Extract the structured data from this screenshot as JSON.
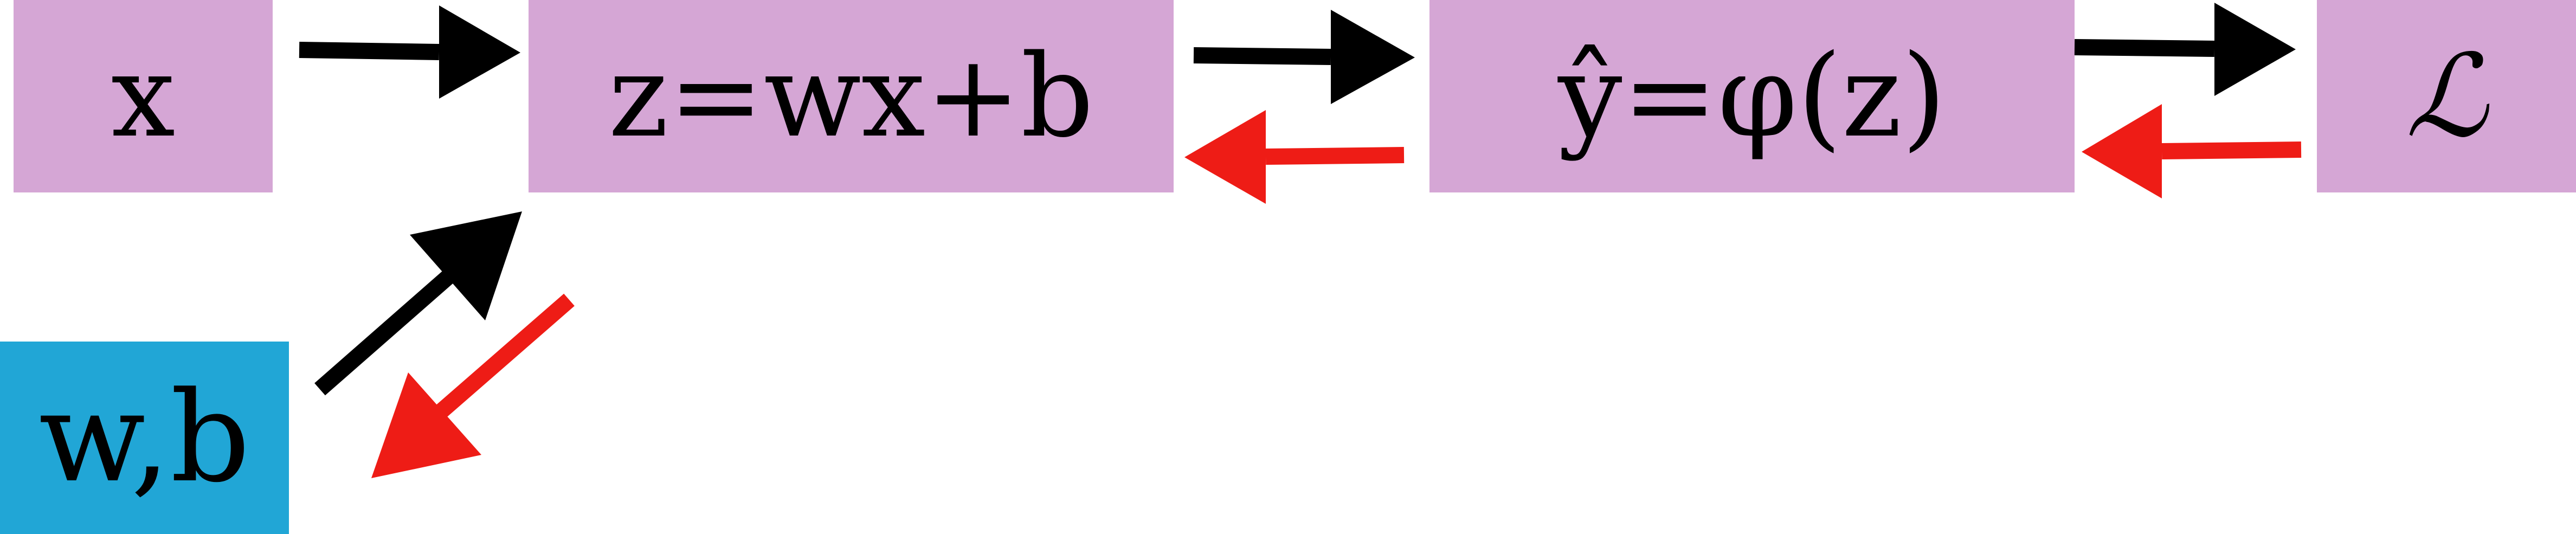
{
  "nodes": {
    "input": {
      "label": "x"
    },
    "linear": {
      "label": "z=wx+b"
    },
    "activation": {
      "label": "ŷ=φ(z)"
    },
    "loss": {
      "label": "ℒ"
    },
    "params": {
      "label": "w,b"
    }
  },
  "colors": {
    "node_fill": "#d5a6d5",
    "param_fill": "#21a6d6",
    "forward_arrow": "#000000",
    "backward_arrow": "#ee1c16",
    "text": "#000000"
  },
  "edges": [
    {
      "from": "input",
      "to": "linear",
      "kind": "forward"
    },
    {
      "from": "linear",
      "to": "activation",
      "kind": "forward"
    },
    {
      "from": "activation",
      "to": "loss",
      "kind": "forward"
    },
    {
      "from": "params",
      "to": "linear",
      "kind": "forward"
    },
    {
      "from": "activation",
      "to": "linear",
      "kind": "backward"
    },
    {
      "from": "loss",
      "to": "activation",
      "kind": "backward"
    },
    {
      "from": "linear",
      "to": "params",
      "kind": "backward"
    }
  ]
}
